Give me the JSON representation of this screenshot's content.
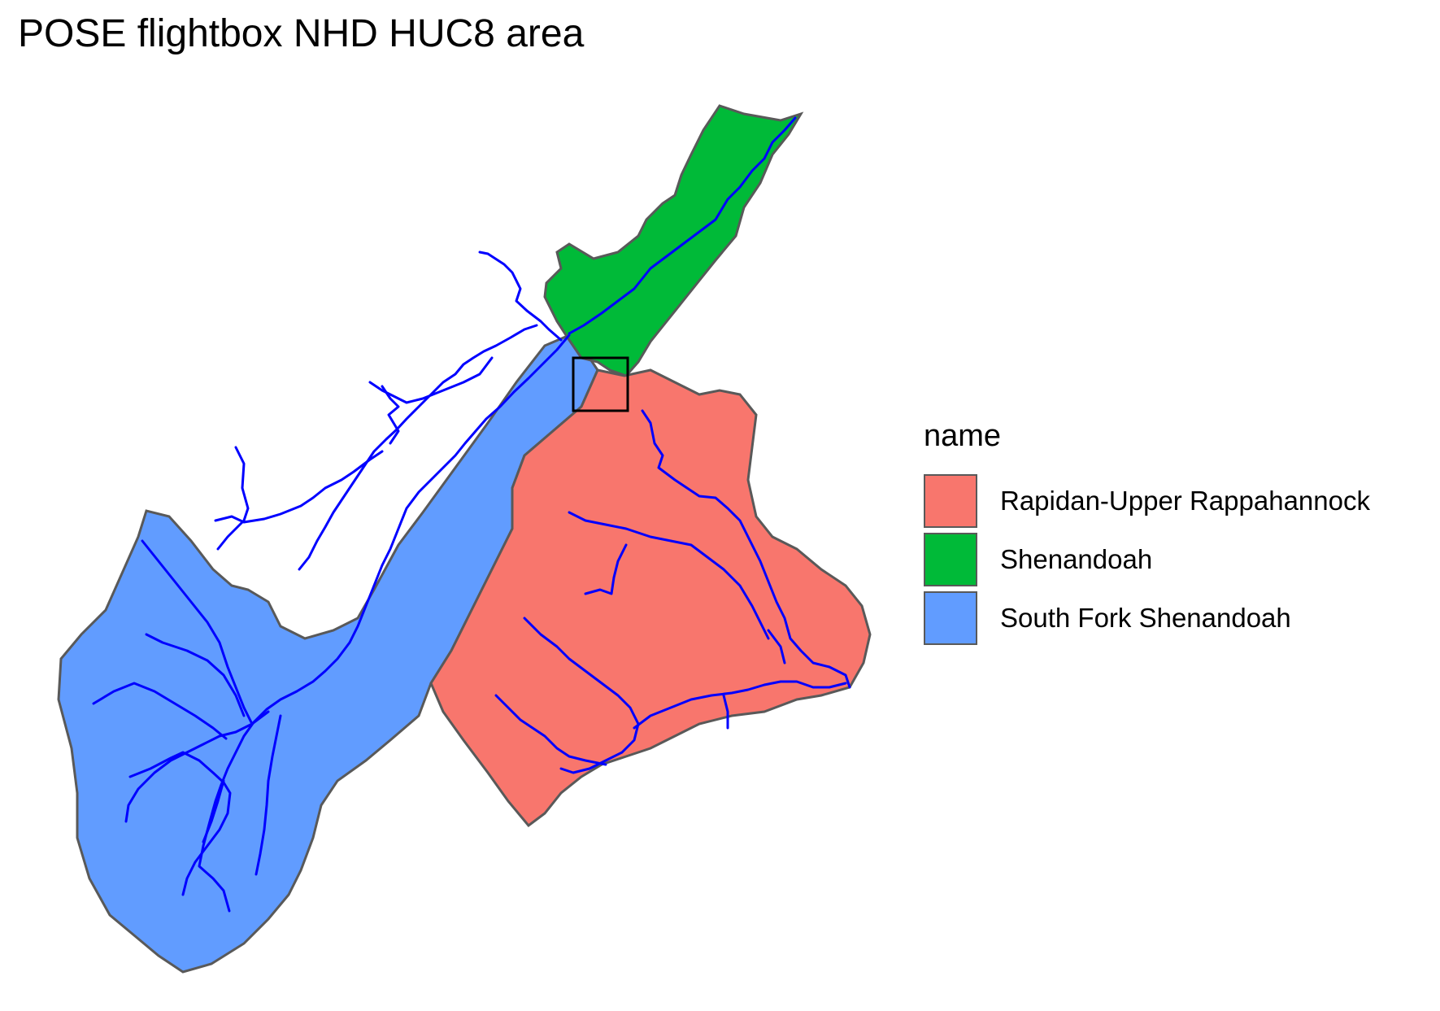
{
  "title": "POSE flightbox NHD HUC8 area",
  "legend": {
    "title": "name",
    "items": [
      {
        "label": "Rapidan-Upper Rappahannock",
        "color": "#F8766D"
      },
      {
        "label": "Shenandoah",
        "color": "#00BA38"
      },
      {
        "label": "South Fork Shenandoah",
        "color": "#619CFF"
      }
    ]
  },
  "map_style": {
    "boundary_color": "#595959",
    "river_color": "#0000FF",
    "flightbox_color": "#000000"
  }
}
